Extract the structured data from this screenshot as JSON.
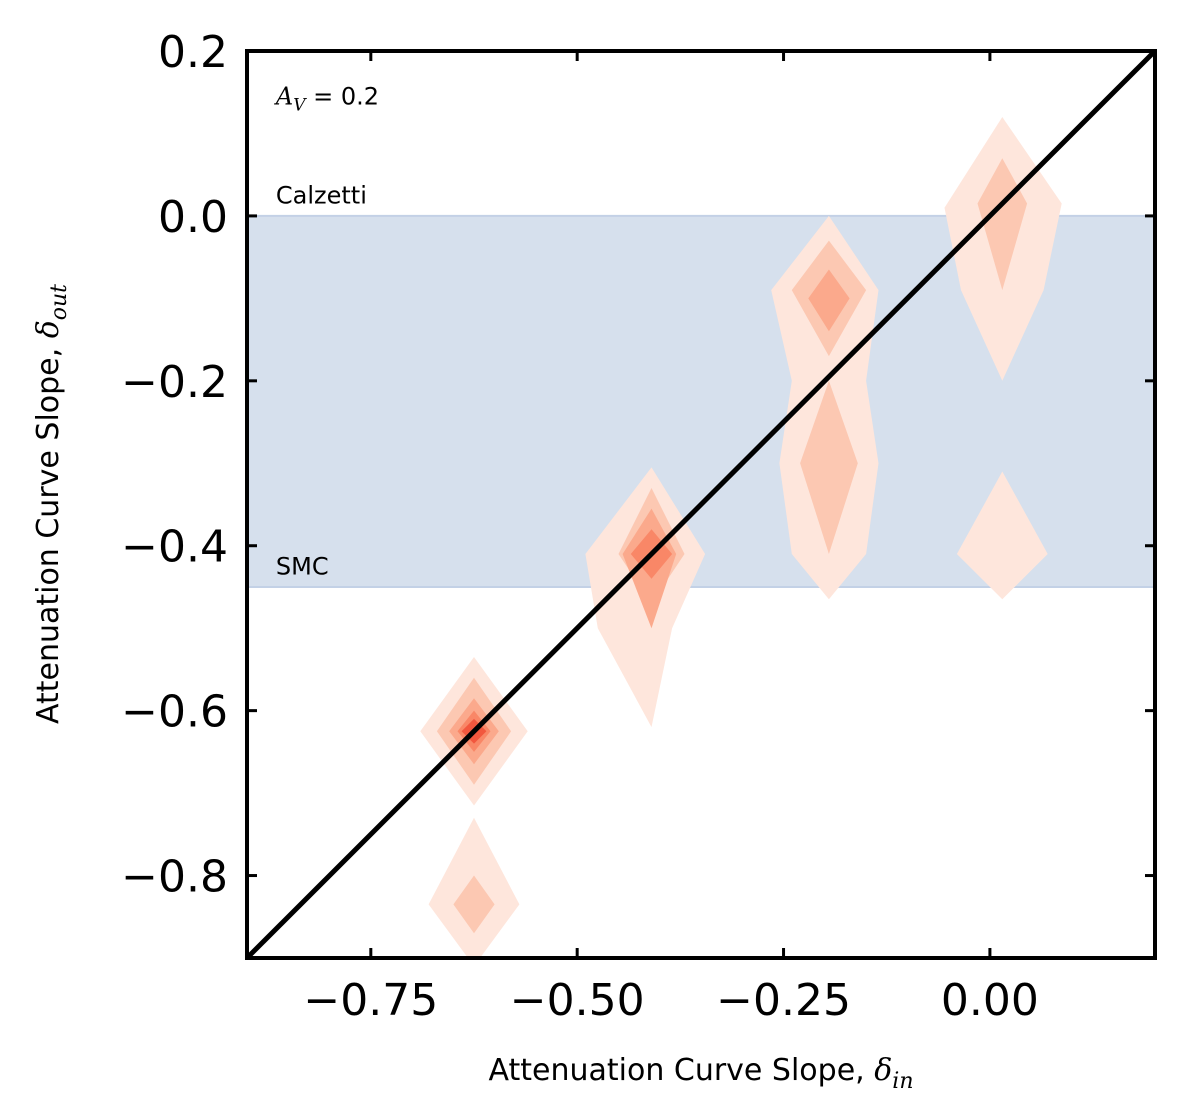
{
  "chart_data": {
    "type": "contour",
    "xlabel": {
      "text": "Attenuation Curve Slope, ",
      "symbol": "δ",
      "subscript": "in"
    },
    "ylabel": {
      "text": "Attenuation Curve Slope, ",
      "symbol": "δ",
      "subscript": "out"
    },
    "xlim": [
      -0.9,
      0.2
    ],
    "ylim": [
      -0.9,
      0.2
    ],
    "xticks": [
      -0.75,
      -0.5,
      -0.25,
      0.0
    ],
    "xtick_labels": [
      "−0.75",
      "−0.50",
      "−0.25",
      "0.00"
    ],
    "yticks": [
      0.2,
      0.0,
      -0.2,
      -0.4,
      -0.6,
      -0.8
    ],
    "ytick_labels": [
      "0.2",
      "0.0",
      "−0.2",
      "−0.4",
      "−0.6",
      "−0.8"
    ],
    "grid": false,
    "shaded_band": {
      "y_from": -0.45,
      "y_to": 0.0,
      "color": "#d6e0ed"
    },
    "reference_line": {
      "from": [
        -0.9,
        -0.9
      ],
      "to": [
        0.2,
        0.2
      ],
      "color": "#000000",
      "label": ""
    },
    "level_colors": [
      "#fee6dc",
      "#fcc8b2",
      "#fba98c",
      "#f98767",
      "#f2573e"
    ],
    "annotations": [
      {
        "text_main": "A",
        "text_sub": "V",
        "text_rest": " = 0.2",
        "x": -0.865,
        "y": 0.135
      },
      {
        "text": "Calzetti",
        "x": -0.865,
        "y": 0.015
      },
      {
        "text": "SMC",
        "x": -0.865,
        "y": -0.435
      }
    ],
    "contours": [
      {
        "level": 0,
        "points": [
          [
            0.015,
            0.12
          ],
          [
            0.087,
            0.015
          ],
          [
            0.065,
            -0.09
          ],
          [
            0.015,
            -0.2
          ],
          [
            -0.035,
            -0.09
          ],
          [
            -0.055,
            0.01
          ]
        ]
      },
      {
        "level": 1,
        "points": [
          [
            0.015,
            0.07
          ],
          [
            0.045,
            0.015
          ],
          [
            0.015,
            -0.09
          ],
          [
            -0.015,
            0.015
          ]
        ]
      },
      {
        "level": 0,
        "points": [
          [
            0.015,
            -0.31
          ],
          [
            0.07,
            -0.41
          ],
          [
            0.015,
            -0.465
          ],
          [
            -0.04,
            -0.41
          ]
        ]
      },
      {
        "level": 0,
        "points": [
          [
            -0.195,
            0.0
          ],
          [
            -0.135,
            -0.09
          ],
          [
            -0.15,
            -0.2
          ],
          [
            -0.135,
            -0.3
          ],
          [
            -0.15,
            -0.41
          ],
          [
            -0.195,
            -0.465
          ],
          [
            -0.24,
            -0.41
          ],
          [
            -0.255,
            -0.3
          ],
          [
            -0.24,
            -0.2
          ],
          [
            -0.265,
            -0.09
          ]
        ]
      },
      {
        "level": 1,
        "points": [
          [
            -0.195,
            -0.03
          ],
          [
            -0.15,
            -0.09
          ],
          [
            -0.195,
            -0.17
          ],
          [
            -0.24,
            -0.09
          ]
        ]
      },
      {
        "level": 1,
        "points": [
          [
            -0.195,
            -0.2
          ],
          [
            -0.16,
            -0.3
          ],
          [
            -0.195,
            -0.41
          ],
          [
            -0.23,
            -0.3
          ]
        ]
      },
      {
        "level": 2,
        "points": [
          [
            -0.195,
            -0.065
          ],
          [
            -0.17,
            -0.1
          ],
          [
            -0.195,
            -0.14
          ],
          [
            -0.22,
            -0.1
          ]
        ]
      },
      {
        "level": 0,
        "points": [
          [
            -0.41,
            -0.305
          ],
          [
            -0.345,
            -0.41
          ],
          [
            -0.385,
            -0.5
          ],
          [
            -0.41,
            -0.62
          ],
          [
            -0.475,
            -0.5
          ],
          [
            -0.49,
            -0.41
          ]
        ]
      },
      {
        "level": 1,
        "points": [
          [
            -0.41,
            -0.33
          ],
          [
            -0.37,
            -0.41
          ],
          [
            -0.41,
            -0.47
          ],
          [
            -0.45,
            -0.41
          ]
        ]
      },
      {
        "level": 2,
        "points": [
          [
            -0.41,
            -0.355
          ],
          [
            -0.38,
            -0.41
          ],
          [
            -0.41,
            -0.5
          ],
          [
            -0.445,
            -0.41
          ]
        ]
      },
      {
        "level": 3,
        "points": [
          [
            -0.41,
            -0.38
          ],
          [
            -0.385,
            -0.41
          ],
          [
            -0.41,
            -0.44
          ],
          [
            -0.435,
            -0.41
          ]
        ]
      },
      {
        "level": 0,
        "points": [
          [
            -0.625,
            -0.535
          ],
          [
            -0.56,
            -0.625
          ],
          [
            -0.625,
            -0.715
          ],
          [
            -0.69,
            -0.625
          ]
        ]
      },
      {
        "level": 1,
        "points": [
          [
            -0.625,
            -0.56
          ],
          [
            -0.58,
            -0.625
          ],
          [
            -0.625,
            -0.69
          ],
          [
            -0.67,
            -0.625
          ]
        ]
      },
      {
        "level": 2,
        "points": [
          [
            -0.625,
            -0.585
          ],
          [
            -0.595,
            -0.625
          ],
          [
            -0.625,
            -0.665
          ],
          [
            -0.655,
            -0.625
          ]
        ]
      },
      {
        "level": 3,
        "points": [
          [
            -0.625,
            -0.6
          ],
          [
            -0.605,
            -0.625
          ],
          [
            -0.625,
            -0.65
          ],
          [
            -0.645,
            -0.625
          ]
        ]
      },
      {
        "level": 4,
        "points": [
          [
            -0.625,
            -0.61
          ],
          [
            -0.61,
            -0.625
          ],
          [
            -0.625,
            -0.64
          ],
          [
            -0.64,
            -0.625
          ]
        ]
      },
      {
        "level": 0,
        "points": [
          [
            -0.625,
            -0.73
          ],
          [
            -0.57,
            -0.835
          ],
          [
            -0.625,
            -0.91
          ],
          [
            -0.68,
            -0.835
          ]
        ]
      },
      {
        "level": 1,
        "points": [
          [
            -0.625,
            -0.8
          ],
          [
            -0.6,
            -0.835
          ],
          [
            -0.625,
            -0.87
          ],
          [
            -0.65,
            -0.835
          ]
        ]
      }
    ]
  }
}
